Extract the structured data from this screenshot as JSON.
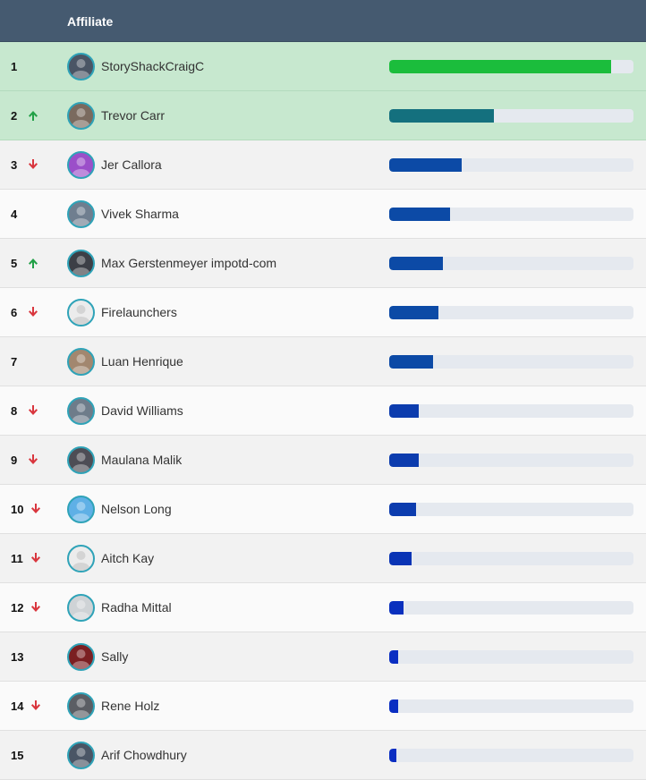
{
  "header": {
    "affiliate_label": "Affiliate"
  },
  "colors": {
    "header_bg": "#455a70",
    "top_row_bg": "#c7e8cf",
    "trend_up": "#22a047",
    "trend_down": "#d9363e",
    "avatar_ring": "#2fa3b8"
  },
  "rows": [
    {
      "rank": "1",
      "trend": "none",
      "name": "StoryShackCraigC",
      "progress": 0.91,
      "bar_color": "#1bbd3c",
      "avatar_bg": "#4a5565",
      "highlight": true
    },
    {
      "rank": "2",
      "trend": "up",
      "name": "Trevor Carr",
      "progress": 0.43,
      "bar_color": "#14707e",
      "avatar_bg": "#7a6a5e",
      "highlight": true
    },
    {
      "rank": "3",
      "trend": "down",
      "name": "Jer Callora",
      "progress": 0.295,
      "bar_color": "#0c4aa6",
      "avatar_bg": "#9b4fc9"
    },
    {
      "rank": "4",
      "trend": "none",
      "name": "Vivek Sharma",
      "progress": 0.25,
      "bar_color": "#0c4aa6",
      "avatar_bg": "#6f7e8f"
    },
    {
      "rank": "5",
      "trend": "up",
      "name": "Max Gerstenmeyer impotd-com",
      "progress": 0.22,
      "bar_color": "#0c4aa6",
      "avatar_bg": "#3c3f46"
    },
    {
      "rank": "6",
      "trend": "down",
      "name": "Firelaunchers",
      "progress": 0.2,
      "bar_color": "#0c4aa6",
      "avatar_bg": "#ececec"
    },
    {
      "rank": "7",
      "trend": "none",
      "name": "Luan Henrique",
      "progress": 0.18,
      "bar_color": "#0c4aa6",
      "avatar_bg": "#a2876f"
    },
    {
      "rank": "8",
      "trend": "down",
      "name": "David Williams",
      "progress": 0.12,
      "bar_color": "#0c3cae",
      "avatar_bg": "#6e7c8a"
    },
    {
      "rank": "9",
      "trend": "down",
      "name": "Maulana Malik",
      "progress": 0.12,
      "bar_color": "#0c3cae",
      "avatar_bg": "#4d4d55"
    },
    {
      "rank": "10",
      "trend": "down",
      "name": "Nelson Long",
      "progress": 0.11,
      "bar_color": "#0c3cae",
      "avatar_bg": "#5fb0e6"
    },
    {
      "rank": "11",
      "trend": "down",
      "name": "Aitch Kay",
      "progress": 0.09,
      "bar_color": "#0a34b5",
      "avatar_bg": "#ececec"
    },
    {
      "rank": "12",
      "trend": "down",
      "name": "Radha Mittal",
      "progress": 0.06,
      "bar_color": "#0a30be",
      "avatar_bg": "#cfd3d6"
    },
    {
      "rank": "13",
      "trend": "none",
      "name": "Sally",
      "progress": 0.035,
      "bar_color": "#0a2ec2",
      "avatar_bg": "#7b1f22"
    },
    {
      "rank": "14",
      "trend": "down",
      "name": "Rene Holz",
      "progress": 0.035,
      "bar_color": "#0a2ec2",
      "avatar_bg": "#5b5e64"
    },
    {
      "rank": "15",
      "trend": "none",
      "name": "Arif Chowdhury",
      "progress": 0.03,
      "bar_color": "#0a2ec2",
      "avatar_bg": "#4a5565"
    }
  ]
}
